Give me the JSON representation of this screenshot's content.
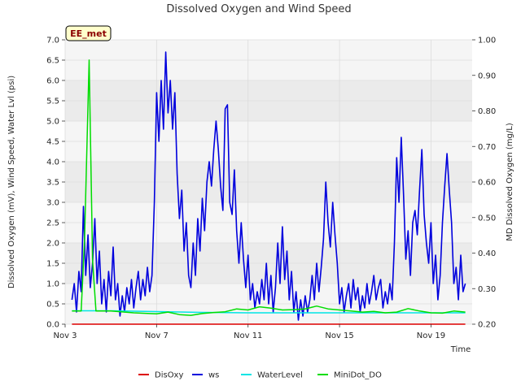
{
  "chart_data": {
    "type": "line",
    "title": "Dissolved Oxygen and Wind Speed",
    "site_label": "EE_met",
    "xlabel": "Time",
    "ylabel_left": "Dissolved Oxygen (mV), Wind Speed, Water Lvl (psi)",
    "ylabel_right": "MD Dissolved Oxygen (mg/L)",
    "x_ticks": [
      {
        "day": 3,
        "label": "Nov 3"
      },
      {
        "day": 7,
        "label": "Nov 7"
      },
      {
        "day": 11,
        "label": "Nov 11"
      },
      {
        "day": 15,
        "label": "Nov 15"
      },
      {
        "day": 19,
        "label": "Nov 19"
      }
    ],
    "xlim": [
      3,
      20.8
    ],
    "ylim_left": [
      0,
      7
    ],
    "ylim_right": [
      0.2,
      1.0
    ],
    "y_ticks_left": [
      "0.0",
      "0.5",
      "1.0",
      "1.5",
      "2.0",
      "2.5",
      "3.0",
      "3.5",
      "4.0",
      "4.5",
      "5.0",
      "5.5",
      "6.0",
      "6.5",
      "7.0"
    ],
    "y_ticks_right": [
      "0.20",
      "0.30",
      "0.40",
      "0.50",
      "0.60",
      "0.70",
      "0.80",
      "0.90",
      "1.00"
    ],
    "grid": true,
    "legend_position": "bottom",
    "series": [
      {
        "name": "DisOxy",
        "color": "#dd0000",
        "axis": "left",
        "points": [
          [
            3.3,
            0.0
          ],
          [
            20.5,
            0.0
          ]
        ]
      },
      {
        "name": "ws",
        "color": "#0000dd",
        "axis": "left",
        "points": [
          [
            3.3,
            0.6
          ],
          [
            3.4,
            1.0
          ],
          [
            3.5,
            0.3
          ],
          [
            3.6,
            1.3
          ],
          [
            3.7,
            0.8
          ],
          [
            3.8,
            2.9
          ],
          [
            3.9,
            1.2
          ],
          [
            4.0,
            2.2
          ],
          [
            4.1,
            0.9
          ],
          [
            4.2,
            1.5
          ],
          [
            4.3,
            2.6
          ],
          [
            4.4,
            1.0
          ],
          [
            4.5,
            1.8
          ],
          [
            4.6,
            0.5
          ],
          [
            4.7,
            1.1
          ],
          [
            4.8,
            0.3
          ],
          [
            4.9,
            1.3
          ],
          [
            5.0,
            0.7
          ],
          [
            5.1,
            1.9
          ],
          [
            5.2,
            0.6
          ],
          [
            5.3,
            1.0
          ],
          [
            5.4,
            0.2
          ],
          [
            5.5,
            0.7
          ],
          [
            5.6,
            0.3
          ],
          [
            5.7,
            0.9
          ],
          [
            5.8,
            0.5
          ],
          [
            5.9,
            1.1
          ],
          [
            6.0,
            0.4
          ],
          [
            6.1,
            0.9
          ],
          [
            6.2,
            1.3
          ],
          [
            6.3,
            0.6
          ],
          [
            6.4,
            1.1
          ],
          [
            6.5,
            0.7
          ],
          [
            6.6,
            1.4
          ],
          [
            6.7,
            0.8
          ],
          [
            6.8,
            1.2
          ],
          [
            6.9,
            3.0
          ],
          [
            7.0,
            5.7
          ],
          [
            7.1,
            4.5
          ],
          [
            7.2,
            6.0
          ],
          [
            7.3,
            4.8
          ],
          [
            7.4,
            6.7
          ],
          [
            7.5,
            5.2
          ],
          [
            7.6,
            6.0
          ],
          [
            7.7,
            4.8
          ],
          [
            7.8,
            5.7
          ],
          [
            7.9,
            3.7
          ],
          [
            8.0,
            2.6
          ],
          [
            8.1,
            3.3
          ],
          [
            8.2,
            1.8
          ],
          [
            8.3,
            2.5
          ],
          [
            8.4,
            1.2
          ],
          [
            8.5,
            0.9
          ],
          [
            8.6,
            2.0
          ],
          [
            8.7,
            1.2
          ],
          [
            8.8,
            2.6
          ],
          [
            8.9,
            1.8
          ],
          [
            9.0,
            3.1
          ],
          [
            9.1,
            2.3
          ],
          [
            9.2,
            3.5
          ],
          [
            9.3,
            4.0
          ],
          [
            9.4,
            3.4
          ],
          [
            9.5,
            4.3
          ],
          [
            9.6,
            5.0
          ],
          [
            9.7,
            4.3
          ],
          [
            9.8,
            3.4
          ],
          [
            9.9,
            2.8
          ],
          [
            10.0,
            5.3
          ],
          [
            10.1,
            5.4
          ],
          [
            10.2,
            3.0
          ],
          [
            10.3,
            2.7
          ],
          [
            10.4,
            3.8
          ],
          [
            10.5,
            2.3
          ],
          [
            10.6,
            1.5
          ],
          [
            10.7,
            2.5
          ],
          [
            10.8,
            1.6
          ],
          [
            10.9,
            0.9
          ],
          [
            11.0,
            1.7
          ],
          [
            11.1,
            0.6
          ],
          [
            11.2,
            1.0
          ],
          [
            11.3,
            0.4
          ],
          [
            11.4,
            0.8
          ],
          [
            11.5,
            0.5
          ],
          [
            11.6,
            1.1
          ],
          [
            11.7,
            0.6
          ],
          [
            11.8,
            1.5
          ],
          [
            11.9,
            0.5
          ],
          [
            12.0,
            1.2
          ],
          [
            12.1,
            0.3
          ],
          [
            12.2,
            0.9
          ],
          [
            12.3,
            2.0
          ],
          [
            12.4,
            1.0
          ],
          [
            12.5,
            2.4
          ],
          [
            12.6,
            1.1
          ],
          [
            12.7,
            1.8
          ],
          [
            12.8,
            0.6
          ],
          [
            12.9,
            1.3
          ],
          [
            13.0,
            0.3
          ],
          [
            13.1,
            0.8
          ],
          [
            13.2,
            0.1
          ],
          [
            13.3,
            0.6
          ],
          [
            13.4,
            0.2
          ],
          [
            13.5,
            0.7
          ],
          [
            13.6,
            0.3
          ],
          [
            13.7,
            0.6
          ],
          [
            13.8,
            1.2
          ],
          [
            13.9,
            0.6
          ],
          [
            14.0,
            1.5
          ],
          [
            14.1,
            0.8
          ],
          [
            14.2,
            1.4
          ],
          [
            14.3,
            2.1
          ],
          [
            14.4,
            3.5
          ],
          [
            14.5,
            2.5
          ],
          [
            14.6,
            1.9
          ],
          [
            14.7,
            3.0
          ],
          [
            14.8,
            2.2
          ],
          [
            14.9,
            1.5
          ],
          [
            15.0,
            0.5
          ],
          [
            15.1,
            0.9
          ],
          [
            15.2,
            0.3
          ],
          [
            15.3,
            0.7
          ],
          [
            15.4,
            1.0
          ],
          [
            15.5,
            0.4
          ],
          [
            15.6,
            1.1
          ],
          [
            15.7,
            0.6
          ],
          [
            15.8,
            0.9
          ],
          [
            15.9,
            0.3
          ],
          [
            16.0,
            0.7
          ],
          [
            16.1,
            0.4
          ],
          [
            16.2,
            1.0
          ],
          [
            16.3,
            0.5
          ],
          [
            16.4,
            0.8
          ],
          [
            16.5,
            1.2
          ],
          [
            16.6,
            0.6
          ],
          [
            16.7,
            0.9
          ],
          [
            16.8,
            1.1
          ],
          [
            16.9,
            0.4
          ],
          [
            17.0,
            0.8
          ],
          [
            17.1,
            0.5
          ],
          [
            17.2,
            1.0
          ],
          [
            17.3,
            0.6
          ],
          [
            17.4,
            2.0
          ],
          [
            17.5,
            4.1
          ],
          [
            17.6,
            3.0
          ],
          [
            17.7,
            4.6
          ],
          [
            17.8,
            3.2
          ],
          [
            17.9,
            1.6
          ],
          [
            18.0,
            2.3
          ],
          [
            18.1,
            1.2
          ],
          [
            18.2,
            2.5
          ],
          [
            18.3,
            2.8
          ],
          [
            18.4,
            2.2
          ],
          [
            18.5,
            3.3
          ],
          [
            18.6,
            4.3
          ],
          [
            18.7,
            2.7
          ],
          [
            18.8,
            2.0
          ],
          [
            18.9,
            1.5
          ],
          [
            19.0,
            2.5
          ],
          [
            19.1,
            1.0
          ],
          [
            19.2,
            1.7
          ],
          [
            19.3,
            0.6
          ],
          [
            19.4,
            1.2
          ],
          [
            19.5,
            2.5
          ],
          [
            19.6,
            3.4
          ],
          [
            19.7,
            4.2
          ],
          [
            19.8,
            3.3
          ],
          [
            19.9,
            2.5
          ],
          [
            20.0,
            1.0
          ],
          [
            20.1,
            1.4
          ],
          [
            20.2,
            0.6
          ],
          [
            20.3,
            1.7
          ],
          [
            20.4,
            0.8
          ],
          [
            20.5,
            1.0
          ]
        ]
      },
      {
        "name": "WaterLevel",
        "color": "#00e5e5",
        "axis": "left",
        "points": [
          [
            3.3,
            0.33
          ],
          [
            5.0,
            0.33
          ],
          [
            7.0,
            0.31
          ],
          [
            9.0,
            0.29
          ],
          [
            11.0,
            0.28
          ],
          [
            14.0,
            0.28
          ],
          [
            17.0,
            0.28
          ],
          [
            19.0,
            0.28
          ],
          [
            20.5,
            0.28
          ]
        ]
      },
      {
        "name": "MiniDot_DO",
        "color": "#00dd00",
        "axis": "right",
        "points": [
          [
            3.3,
            0.237
          ],
          [
            3.7,
            0.237
          ],
          [
            3.85,
            0.44
          ],
          [
            4.05,
            0.943
          ],
          [
            4.2,
            0.38
          ],
          [
            4.35,
            0.237
          ],
          [
            5.0,
            0.237
          ],
          [
            6.0,
            0.232
          ],
          [
            7.0,
            0.229
          ],
          [
            7.5,
            0.234
          ],
          [
            8.0,
            0.227
          ],
          [
            8.5,
            0.225
          ],
          [
            9.0,
            0.23
          ],
          [
            9.5,
            0.233
          ],
          [
            10.0,
            0.235
          ],
          [
            10.5,
            0.243
          ],
          [
            11.0,
            0.24
          ],
          [
            11.5,
            0.249
          ],
          [
            12.0,
            0.245
          ],
          [
            12.5,
            0.24
          ],
          [
            13.0,
            0.241
          ],
          [
            13.5,
            0.243
          ],
          [
            14.0,
            0.251
          ],
          [
            14.5,
            0.243
          ],
          [
            15.0,
            0.24
          ],
          [
            15.5,
            0.237
          ],
          [
            16.0,
            0.234
          ],
          [
            16.5,
            0.236
          ],
          [
            17.0,
            0.232
          ],
          [
            17.5,
            0.234
          ],
          [
            18.0,
            0.244
          ],
          [
            18.5,
            0.237
          ],
          [
            19.0,
            0.232
          ],
          [
            19.5,
            0.231
          ],
          [
            20.0,
            0.237
          ],
          [
            20.5,
            0.234
          ]
        ]
      }
    ]
  }
}
